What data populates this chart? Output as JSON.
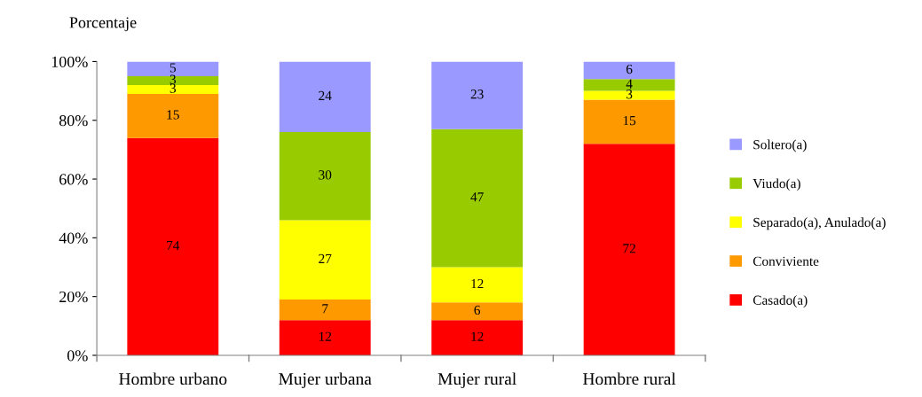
{
  "chart_data": {
    "type": "bar",
    "stacked": true,
    "ylabel": "Porcentaje",
    "categories": [
      "Hombre urbano",
      "Mujer urbana",
      "Mujer rural",
      "Hombre rural"
    ],
    "series": [
      {
        "name": "Casado(a)",
        "color": "#ff0000",
        "values": [
          74,
          12,
          12,
          72
        ]
      },
      {
        "name": "Conviviente",
        "color": "#ff9900",
        "values": [
          15,
          7,
          6,
          15
        ]
      },
      {
        "name": "Separado(a), Anulado(a)",
        "color": "#ffff00",
        "values": [
          3,
          27,
          12,
          3
        ]
      },
      {
        "name": "Viudo(a)",
        "color": "#99cc00",
        "values": [
          3,
          30,
          47,
          4
        ]
      },
      {
        "name": "Soltero(a)",
        "color": "#9999ff",
        "values": [
          5,
          24,
          23,
          6
        ]
      }
    ],
    "ylim": [
      0,
      100
    ],
    "yticks": [
      {
        "value": 0,
        "label": "0%"
      },
      {
        "value": 20,
        "label": "20%"
      },
      {
        "value": 40,
        "label": "40%"
      },
      {
        "value": 60,
        "label": "60%"
      },
      {
        "value": 80,
        "label": "80%"
      },
      {
        "value": 100,
        "label": "100%"
      }
    ],
    "data_labels": true,
    "grid": false,
    "legend": "right"
  }
}
